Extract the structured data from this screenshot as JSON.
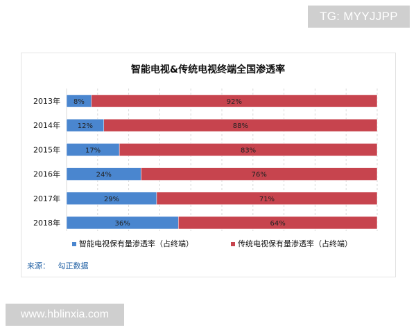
{
  "watermarks": {
    "top": "TG: MYYJJPP",
    "bottom": "www.hblinxia.com"
  },
  "source": {
    "label": "来源：",
    "value": "勾正数据"
  },
  "chart_data": {
    "type": "bar",
    "orientation": "horizontal",
    "stacked": true,
    "title": "智能电视&传统电视终端全国渗透率",
    "categories": [
      "2013年",
      "2014年",
      "2015年",
      "2016年",
      "2017年",
      "2018年"
    ],
    "series": [
      {
        "name": "智能电视保有量渗透率（占终端）",
        "color": "#4a86cf",
        "values": [
          8,
          12,
          17,
          24,
          29,
          36
        ],
        "labels": [
          "8%",
          "12%",
          "17%",
          "24%",
          "29%",
          "36%"
        ]
      },
      {
        "name": "传统电视保有量渗透率（占终端）",
        "color": "#c7444e",
        "values": [
          92,
          88,
          83,
          76,
          71,
          64
        ],
        "labels": [
          "92%",
          "88%",
          "83%",
          "76%",
          "71%",
          "64%"
        ]
      }
    ],
    "xlim": [
      0,
      100
    ],
    "grid": true,
    "legend_position": "bottom"
  }
}
